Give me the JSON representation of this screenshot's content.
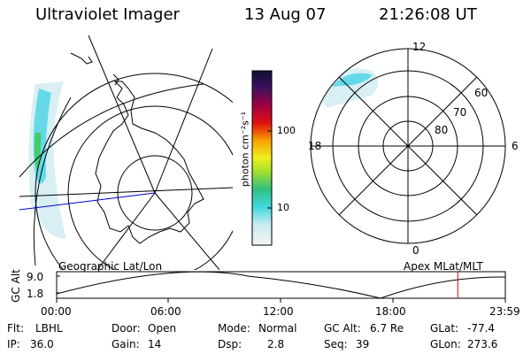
{
  "header": {
    "instrument": "Ultraviolet Imager",
    "date": "13 Aug 07",
    "time": "21:26:08 UT"
  },
  "colorbar": {
    "unit_label": "photon cm⁻²s⁻¹",
    "ticks": [
      "100",
      "10"
    ],
    "scale": "log"
  },
  "polar_plot": {
    "mlt_labels": [
      "12",
      "18",
      "6",
      "0"
    ],
    "lat_labels": [
      "60",
      "70",
      "80"
    ],
    "caption": "Apex MLat/MLT"
  },
  "geo_plot": {
    "caption": "Geographic Lat/Lon"
  },
  "altitude_plot": {
    "ylabel": "GC Alt",
    "yticks": [
      "9.0",
      "1.8"
    ],
    "xticks": [
      "00:00",
      "06:00",
      "12:00",
      "18:00",
      "23:59"
    ],
    "current_time_fraction": 0.894
  },
  "status": {
    "filter_label": "Flt:",
    "filter_value": "LBHL",
    "ip_label": "IP:",
    "ip_value": "36.0",
    "door_label": "Door:",
    "door_value": "Open",
    "gain_label": "Gain:",
    "gain_value": "14",
    "mode_label": "Mode:",
    "mode_value": "Normal",
    "dsp_label": "Dsp:",
    "dsp_value": "2.8",
    "gcalt_label": "GC Alt:",
    "gcalt_value": "6.7 Re",
    "seq_label": "Seq:",
    "seq_value": "39",
    "glat_label": "GLat:",
    "glat_value": "-77.4",
    "glon_label": "GLon:",
    "glon_value": "273.6"
  },
  "colors": {
    "marker": "#cc0000",
    "aurora_low": "#d8f0f4",
    "aurora_mid": "#66d9e8",
    "aurora_high": "#44cc66",
    "track_line": "#0000cc"
  }
}
